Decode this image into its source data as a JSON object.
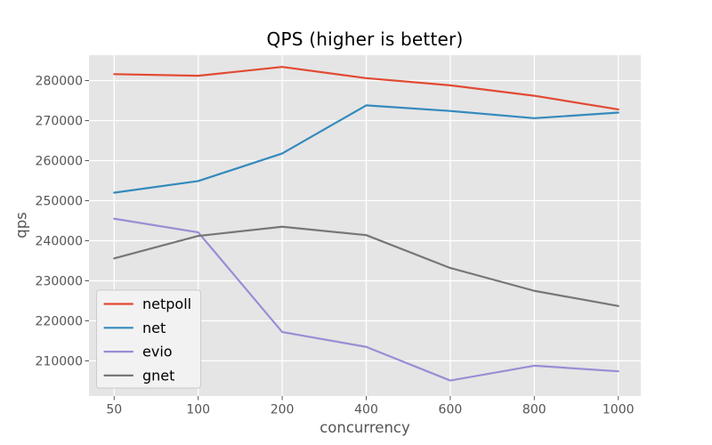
{
  "chart_data": {
    "type": "line",
    "title": "QPS (higher is better)",
    "xlabel": "concurrency",
    "ylabel": "qps",
    "categories": [
      50,
      100,
      200,
      400,
      600,
      800,
      1000
    ],
    "series": [
      {
        "name": "netpoll",
        "color": "#E24A33",
        "values": [
          281600,
          281200,
          283400,
          280600,
          278800,
          276200,
          272800
        ]
      },
      {
        "name": "net",
        "color": "#348ABD",
        "values": [
          252000,
          254900,
          261800,
          273800,
          272400,
          270600,
          272000
        ]
      },
      {
        "name": "evio",
        "color": "#988ED5",
        "values": [
          245500,
          242100,
          217200,
          213500,
          205100,
          208800,
          207400
        ]
      },
      {
        "name": "gnet",
        "color": "#777777",
        "values": [
          235600,
          241200,
          243500,
          241400,
          233200,
          227500,
          223700
        ]
      }
    ],
    "yticks": [
      210000,
      220000,
      230000,
      240000,
      250000,
      260000,
      270000,
      280000
    ],
    "ylim": [
      201200,
      286300
    ],
    "grid": true,
    "legend_position": "lower left",
    "style": {
      "plot_bg": "#E5E5E5",
      "grid_color": "#FFFFFF",
      "tick_color": "#555555",
      "tick_label_color": "#555555",
      "title_color": "#000000",
      "legend_bg": "#F2F2F2",
      "legend_border": "#CCCCCC",
      "legend_text_color": "#000000",
      "figure_bg": "#FFFFFF"
    }
  }
}
